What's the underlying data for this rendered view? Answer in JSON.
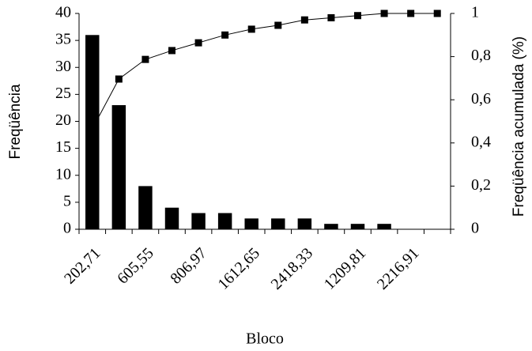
{
  "chart_data": {
    "type": "pareto",
    "xlabel": "Bloco",
    "ylabel": "Freqüência",
    "y2label": "Freqüência acumulada (%)",
    "categories": [
      "202,71",
      null,
      "605,55",
      null,
      "806,97",
      null,
      "1612,65",
      null,
      "2418,33",
      null,
      "1209,81",
      null,
      "2216,91",
      null
    ],
    "series": [
      {
        "name": "Freqüência",
        "type": "bar",
        "color": "#000000",
        "values": [
          36,
          23,
          8,
          4,
          3,
          3,
          2,
          2,
          2,
          1,
          1,
          1,
          0,
          0
        ]
      },
      {
        "name": "Freqüência acumulada",
        "type": "line",
        "axis": "y2",
        "color": "#000000",
        "values": [
          0.465,
          0.696,
          0.787,
          0.828,
          0.864,
          0.9,
          0.927,
          0.945,
          0.97,
          0.98,
          0.99,
          1,
          1,
          1
        ]
      }
    ],
    "ylim": [
      0,
      40
    ],
    "yticks": [
      0,
      5,
      10,
      15,
      20,
      25,
      30,
      35,
      40
    ],
    "y2lim": [
      0,
      1
    ],
    "y2ticks": [
      0,
      {
        "value": 0.2,
        "label": "0,2"
      },
      {
        "value": 0.4,
        "label": "0,4"
      },
      {
        "value": 0.6,
        "label": "0,6"
      },
      {
        "value": 0.8,
        "label": "0,8"
      },
      1
    ]
  }
}
